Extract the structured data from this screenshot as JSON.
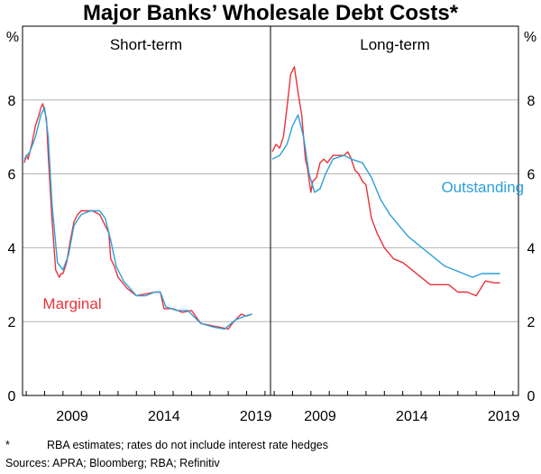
{
  "chart_data": {
    "type": "line",
    "title": "Major Banks’ Wholesale Debt Costs*",
    "y_unit_left": "%",
    "y_unit_right": "%",
    "ylim": [
      0,
      10
    ],
    "yticks": [
      "0",
      "2",
      "4",
      "6",
      "8"
    ],
    "grid": true,
    "panels": [
      {
        "title": "Short-term",
        "xlim": [
          2006.8,
          2020.3
        ],
        "xticks": [
          "2009",
          "2014",
          "2019"
        ],
        "series": [
          {
            "name": "Marginal",
            "color": "#e8333b",
            "label_pos": [
              2007.9,
              2.35
            ],
            "x": [
              2006.9,
              2007.0,
              2007.1,
              2007.3,
              2007.5,
              2007.7,
              2007.8,
              2007.9,
              2008.0,
              2008.1,
              2008.2,
              2008.4,
              2008.6,
              2008.8,
              2008.9,
              2009.0,
              2009.2,
              2009.4,
              2009.6,
              2009.8,
              2010.0,
              2010.3,
              2010.6,
              2011.0,
              2011.3,
              2011.5,
              2011.6,
              2011.8,
              2012.0,
              2012.5,
              2013.0,
              2013.5,
              2014.0,
              2014.3,
              2014.5,
              2015.0,
              2015.5,
              2016.0,
              2016.5,
              2017.0,
              2017.5,
              2018.0,
              2018.3,
              2018.7,
              2019.0,
              2019.3
            ],
            "y": [
              6.3,
              6.5,
              6.4,
              6.8,
              7.3,
              7.6,
              7.8,
              7.9,
              7.7,
              7.5,
              6.5,
              4.8,
              3.4,
              3.2,
              3.3,
              3.3,
              3.6,
              4.2,
              4.7,
              4.9,
              5.0,
              5.0,
              5.0,
              4.9,
              4.6,
              4.4,
              3.7,
              3.5,
              3.2,
              2.9,
              2.7,
              2.75,
              2.8,
              2.8,
              2.35,
              2.35,
              2.25,
              2.3,
              1.95,
              1.9,
              1.85,
              1.8,
              2.0,
              2.2,
              2.15,
              2.2
            ]
          },
          {
            "name": "",
            "color": "#2d9fd9",
            "x": [
              2006.9,
              2007.2,
              2007.5,
              2007.8,
              2008.0,
              2008.2,
              2008.4,
              2008.7,
              2009.0,
              2009.3,
              2009.6,
              2010.0,
              2010.5,
              2011.0,
              2011.3,
              2011.6,
              2011.9,
              2012.3,
              2013.0,
              2013.5,
              2014.0,
              2014.3,
              2014.6,
              2015.2,
              2015.8,
              2016.5,
              2017.2,
              2017.8,
              2018.4,
              2018.9,
              2019.3
            ],
            "y": [
              6.4,
              6.6,
              7.0,
              7.6,
              7.8,
              7.0,
              5.2,
              3.6,
              3.4,
              3.8,
              4.6,
              4.9,
              5.0,
              5.0,
              4.8,
              4.2,
              3.5,
              3.1,
              2.7,
              2.7,
              2.8,
              2.8,
              2.4,
              2.3,
              2.3,
              1.95,
              1.85,
              1.8,
              2.05,
              2.15,
              2.2
            ]
          }
        ]
      },
      {
        "title": "Long-term",
        "xlim": [
          2006.8,
          2020.3
        ],
        "xticks": [
          "2009",
          "2014",
          "2019"
        ],
        "series": [
          {
            "name": "",
            "color": "#e8333b",
            "x": [
              2006.9,
              2007.1,
              2007.3,
              2007.5,
              2007.7,
              2007.9,
              2008.1,
              2008.3,
              2008.5,
              2008.7,
              2008.8,
              2009.0,
              2009.1,
              2009.3,
              2009.5,
              2009.7,
              2009.9,
              2010.2,
              2010.5,
              2010.8,
              2011.0,
              2011.2,
              2011.4,
              2011.6,
              2011.8,
              2012.0,
              2012.3,
              2012.6,
              2013.0,
              2013.5,
              2014.0,
              2014.5,
              2015.0,
              2015.5,
              2016.0,
              2016.5,
              2017.0,
              2017.5,
              2018.0,
              2018.5,
              2019.0,
              2019.3
            ],
            "y": [
              6.6,
              6.8,
              6.7,
              7.0,
              7.8,
              8.7,
              8.9,
              8.2,
              7.6,
              6.4,
              6.2,
              5.5,
              5.8,
              5.9,
              6.3,
              6.4,
              6.3,
              6.5,
              6.5,
              6.5,
              6.6,
              6.4,
              6.1,
              6.0,
              5.8,
              5.7,
              4.8,
              4.4,
              4.0,
              3.7,
              3.6,
              3.4,
              3.2,
              3.0,
              3.0,
              3.0,
              2.8,
              2.8,
              2.7,
              3.1,
              3.05,
              3.05
            ]
          },
          {
            "name": "Outstanding",
            "color": "#2d9fd9",
            "label_pos": [
              2016.1,
              5.5
            ],
            "x": [
              2006.9,
              2007.3,
              2007.7,
              2008.0,
              2008.3,
              2008.6,
              2008.9,
              2009.2,
              2009.5,
              2009.8,
              2010.2,
              2010.8,
              2011.2,
              2011.8,
              2012.3,
              2012.8,
              2013.3,
              2013.8,
              2014.3,
              2014.8,
              2015.3,
              2015.8,
              2016.3,
              2016.8,
              2017.3,
              2017.8,
              2018.3,
              2018.8,
              2019.3
            ],
            "y": [
              6.4,
              6.5,
              6.8,
              7.3,
              7.6,
              7.0,
              6.0,
              5.5,
              5.6,
              6.0,
              6.4,
              6.5,
              6.4,
              6.3,
              5.9,
              5.3,
              4.9,
              4.6,
              4.3,
              4.1,
              3.9,
              3.7,
              3.5,
              3.4,
              3.3,
              3.2,
              3.3,
              3.3,
              3.3
            ]
          }
        ]
      }
    ],
    "footnotes": [
      {
        "mark": "*",
        "text": "RBA estimates; rates do not include interest rate hedges"
      },
      {
        "text": "Sources: APRA; Bloomberg; RBA; Refinitiv"
      }
    ]
  }
}
